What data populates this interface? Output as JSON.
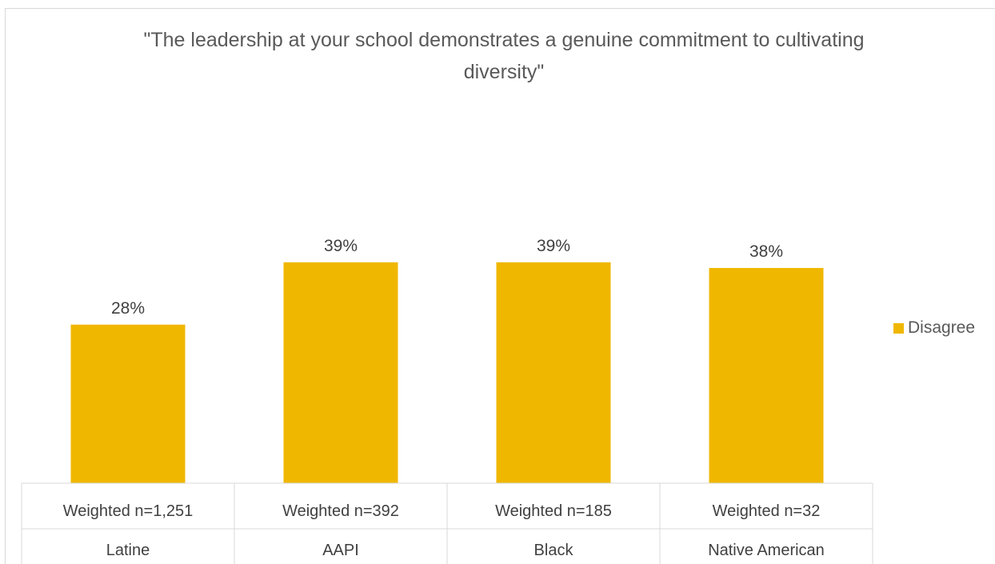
{
  "chart_data": {
    "type": "bar",
    "title": "\"The leadership at your school demonstrates a genuine commitment to cultivating diversity\"",
    "categories": [
      {
        "n_label": "Weighted n=1,251",
        "group": "Latine"
      },
      {
        "n_label": "Weighted n=392",
        "group": "AAPI"
      },
      {
        "n_label": "Weighted n=185",
        "group": "Black"
      },
      {
        "n_label": "Weighted n=32",
        "group": "Native American"
      }
    ],
    "series": [
      {
        "name": "Disagree",
        "color": "#f0b700",
        "values": [
          28,
          39,
          39,
          38
        ],
        "data_labels": [
          "28%",
          "39%",
          "39%",
          "38%"
        ]
      }
    ],
    "ylim": [
      0,
      100
    ],
    "grid": false,
    "legend": "right"
  }
}
